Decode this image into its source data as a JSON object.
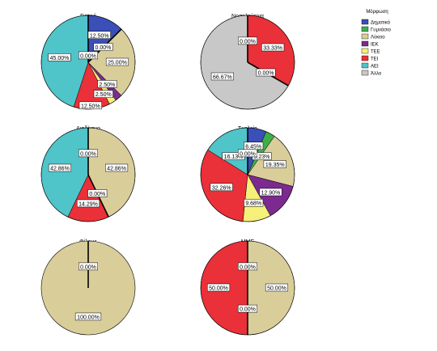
{
  "chart_data": {
    "type": "pie",
    "legend": {
      "title": "Μόρφωση",
      "placement": "top-right",
      "entries": [
        {
          "name": "Δημοτικό",
          "color": "#3a4fb8"
        },
        {
          "name": "Γυμνάσιο",
          "color": "#3fae49"
        },
        {
          "name": "Λύκειο",
          "color": "#d9cd9a"
        },
        {
          "name": "ΙΕΚ",
          "color": "#7c2a8f"
        },
        {
          "name": "ΤΕΕ",
          "color": "#f4f07a"
        },
        {
          "name": "ΤΕΙ",
          "color": "#ea3038"
        },
        {
          "name": "ΑΕΙ",
          "color": "#4fc4c9"
        },
        {
          "name": "Άλλο",
          "color": "#c8c8c8"
        }
      ]
    },
    "charts": [
      {
        "title": "Γιατρό",
        "slices": [
          {
            "category": "Δημοτικό",
            "value": 12.5,
            "label": "12.50%"
          },
          {
            "category": "Γυμνάσιο",
            "value": 0,
            "label": "0.00%"
          },
          {
            "category": "Λύκειο",
            "value": 25.0,
            "label": "25.00%"
          },
          {
            "category": "ΙΕΚ",
            "value": 2.5,
            "label": "2.50%"
          },
          {
            "category": "ΤΕΕ",
            "value": 2.5,
            "label": "2.50%"
          },
          {
            "category": "ΤΕΙ",
            "value": 12.5,
            "label": "12.50%"
          },
          {
            "category": "ΑΕΙ",
            "value": 45.0,
            "label": "45.00%"
          },
          {
            "category": "Άλλο",
            "value": 0,
            "label": "0.00%"
          }
        ]
      },
      {
        "title": "Νοσηλεύτρια",
        "slices": [
          {
            "category": "ΤΕΙ",
            "value": 33.33,
            "label": "33.33%"
          },
          {
            "category": "ΑΕΙ",
            "value": 0,
            "label": "0.00%"
          },
          {
            "category": "Άλλο",
            "value": 66.67,
            "label": "66.67%"
          },
          {
            "category": "Λύκειο",
            "value": 0,
            "label": "0.00%"
          }
        ]
      },
      {
        "title": "Διαδίκτυο",
        "slices": [
          {
            "category": "Λύκειο",
            "value": 42.86,
            "label": "42.86%"
          },
          {
            "category": "ΤΕΕ",
            "value": 0,
            "label": "0.00%"
          },
          {
            "category": "ΤΕΙ",
            "value": 14.29,
            "label": "14.29%"
          },
          {
            "category": "ΑΕΙ",
            "value": 42.86,
            "label": "42.86%"
          },
          {
            "category": "Δημοτικό",
            "value": 0,
            "label": "0.00%"
          }
        ]
      },
      {
        "title": "Σχολείο",
        "slices": [
          {
            "category": "Δημοτικό",
            "value": 6.45,
            "label": "6.45%"
          },
          {
            "category": "Γυμνάσιο",
            "value": 3.23,
            "label": "3.23%"
          },
          {
            "category": "Λύκειο",
            "value": 19.35,
            "label": "19.35%"
          },
          {
            "category": "ΙΕΚ",
            "value": 12.9,
            "label": "12.90%"
          },
          {
            "category": "ΤΕΕ",
            "value": 9.68,
            "label": "9.68%"
          },
          {
            "category": "ΤΕΙ",
            "value": 32.26,
            "label": "32.26%"
          },
          {
            "category": "ΑΕΙ",
            "value": 16.13,
            "label": "16.13%"
          },
          {
            "category": "Άλλο",
            "value": 0,
            "label": "0.00%"
          }
        ]
      },
      {
        "title": "Φίλους",
        "slices": [
          {
            "category": "Λύκειο",
            "value": 100.0,
            "label": "100.00%"
          },
          {
            "category": "Δημοτικό",
            "value": 0,
            "label": "0.00%"
          }
        ]
      },
      {
        "title": "ΜΜΕ",
        "slices": [
          {
            "category": "Λύκειο",
            "value": 50.0,
            "label": "50.00%"
          },
          {
            "category": "Άλλο",
            "value": 0,
            "label": "0.00%"
          },
          {
            "category": "ΤΕΙ",
            "value": 50.0,
            "label": "50.00%"
          },
          {
            "category": "ΑΕΙ",
            "value": 0,
            "label": "0.00%"
          }
        ]
      }
    ]
  }
}
